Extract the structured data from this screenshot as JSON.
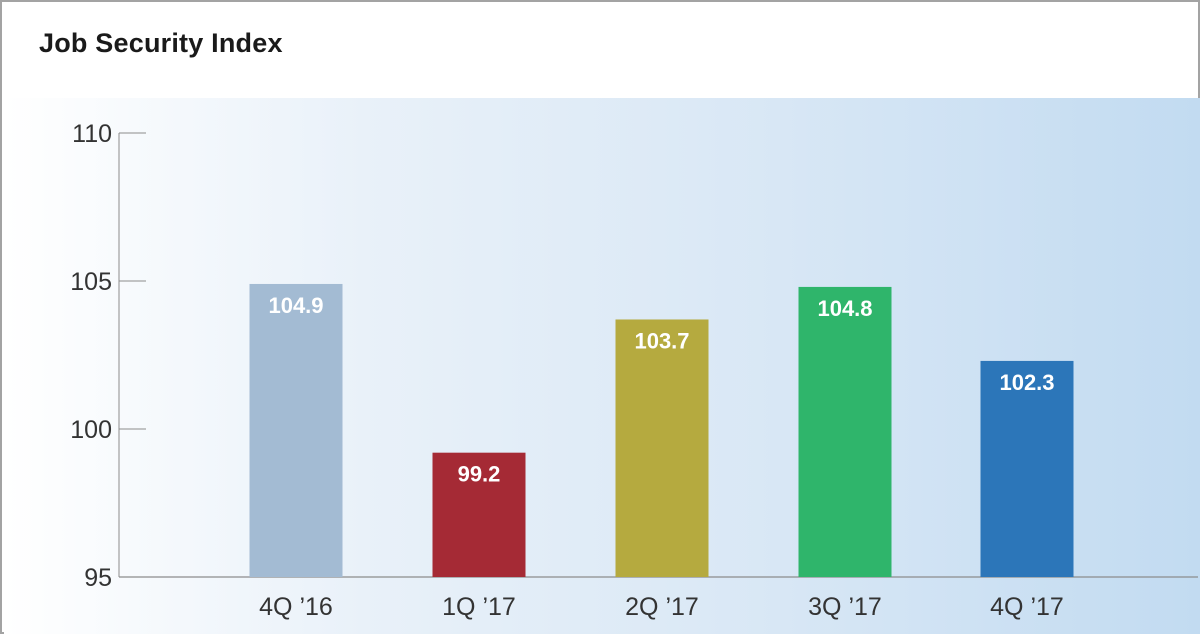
{
  "chart_data": {
    "type": "bar",
    "title": "Job Security Index",
    "xlabel": "",
    "ylabel": "",
    "categories": [
      "4Q ’16",
      "1Q ’17",
      "2Q ’17",
      "3Q ’17",
      "4Q ’17"
    ],
    "values": [
      104.9,
      99.2,
      103.7,
      104.8,
      102.3
    ],
    "value_labels": [
      "104.9",
      "99.2",
      "103.7",
      "104.8",
      "102.3"
    ],
    "bar_colors": [
      "#a3bbd3",
      "#a52a35",
      "#b5aa3f",
      "#2fb56b",
      "#2c76b9"
    ],
    "ylim": [
      95,
      110
    ],
    "yticks": [
      110,
      105,
      100,
      95
    ],
    "grid": false,
    "legend": "none"
  }
}
